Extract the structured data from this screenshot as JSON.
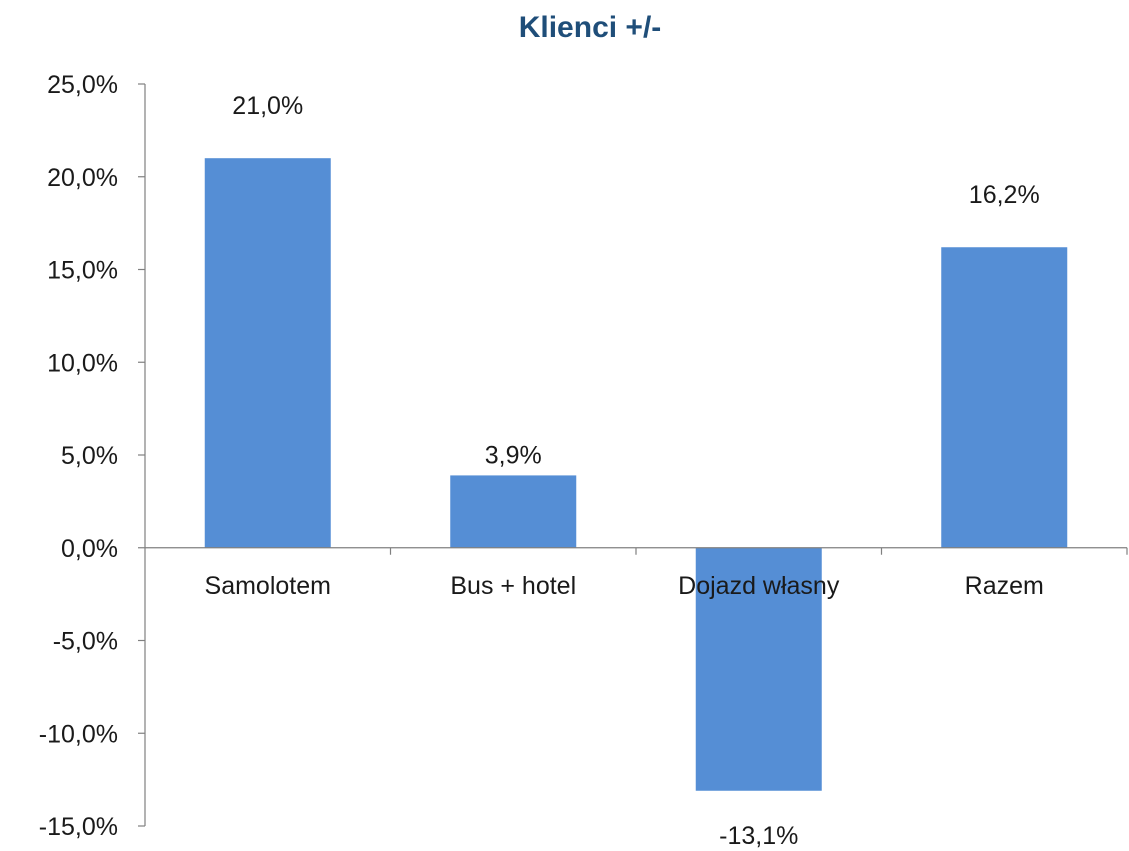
{
  "chart_data": {
    "type": "bar",
    "title": "Klienci +/-",
    "categories": [
      "Samolotem",
      "Bus + hotel",
      "Dojazd własny",
      "Razem"
    ],
    "values": [
      21.0,
      3.9,
      -13.1,
      16.2
    ],
    "data_labels": [
      "21,0%",
      "3,9%",
      "-13,1%",
      "16,2%"
    ],
    "ylim": [
      -15,
      25
    ],
    "yticks": [
      25,
      20,
      15,
      10,
      5,
      0,
      -5,
      -10,
      -15
    ],
    "ytick_labels": [
      "25,0%",
      "20,0%",
      "15,0%",
      "10,0%",
      "5,0%",
      "0,0%",
      "-5,0%",
      "-10,0%",
      "-15,0%"
    ],
    "xlabel": "",
    "ylabel": "",
    "grid": false,
    "legend": "none",
    "bar_color": "#558ed5",
    "title_color": "#1f4e79"
  }
}
